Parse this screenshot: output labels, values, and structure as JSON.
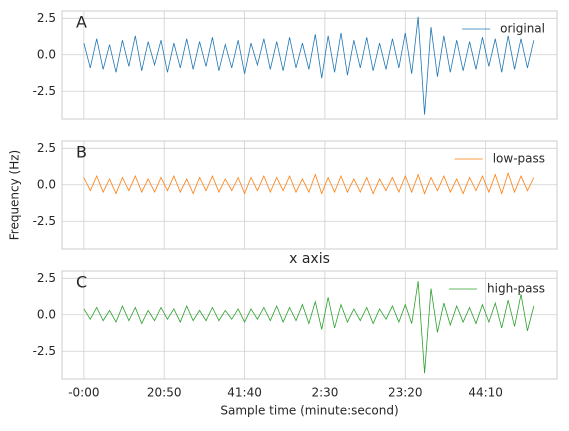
{
  "chart_data": [
    {
      "type": "line",
      "annotation": "A",
      "x": [
        0,
        100,
        200,
        300,
        400,
        500,
        600,
        700,
        800,
        900,
        1000,
        1100,
        1200,
        1300,
        1400,
        1500,
        1600,
        1700,
        1800,
        1900,
        2000,
        2100,
        2200,
        2300,
        2400,
        2500,
        2600,
        2700,
        2800,
        2900,
        3000,
        3100,
        3200,
        3300,
        3400,
        3500,
        3600,
        3700,
        3800,
        3900,
        4000,
        4100,
        4200,
        4300,
        4400,
        4500,
        4600,
        4700,
        4800,
        4900,
        5000,
        5100,
        5200,
        5300,
        5400,
        5500,
        5600,
        5700,
        5800,
        5900,
        6000,
        6100,
        6200,
        6300,
        6400,
        6500,
        6600,
        6700,
        6800,
        6900,
        7000
      ],
      "series": [
        {
          "name": "original",
          "color": "#1f77b4",
          "values": [
            0.8,
            -0.9,
            1.1,
            -1.0,
            0.7,
            -1.2,
            1.0,
            -0.8,
            1.3,
            -1.1,
            0.9,
            -0.7,
            1.0,
            -1.2,
            0.8,
            -0.9,
            1.1,
            -1.0,
            0.9,
            -0.8,
            1.2,
            -1.1,
            0.7,
            -0.9,
            1.0,
            -1.3,
            0.8,
            -0.7,
            1.1,
            -1.0,
            0.9,
            -1.1,
            1.2,
            -0.9,
            0.8,
            -1.0,
            1.4,
            -1.6,
            1.3,
            -1.2,
            1.5,
            -1.4,
            1.0,
            -0.9,
            1.2,
            -1.1,
            0.8,
            -1.0,
            1.1,
            -0.9,
            1.5,
            -1.3,
            2.6,
            -4.1,
            1.9,
            -1.5,
            1.3,
            -1.2,
            1.0,
            -1.1,
            0.9,
            -1.0,
            1.2,
            -0.8,
            1.1,
            -1.2,
            1.3,
            -1.0,
            1.1,
            -0.9,
            1.0
          ]
        }
      ],
      "xlim": [
        -340,
        7360
      ],
      "xticks": [
        0,
        1250,
        2500,
        3750,
        5000,
        6250
      ],
      "ylim": [
        -4.4,
        3.0
      ],
      "yticks": [
        -2.5,
        {
          "value": 0,
          "label": "0.0"
        },
        2.5
      ],
      "grid": true,
      "legend": "upper right"
    },
    {
      "type": "line",
      "annotation": "B",
      "ylabel": "Frequency (Hz)",
      "x": [
        0,
        100,
        200,
        300,
        400,
        500,
        600,
        700,
        800,
        900,
        1000,
        1100,
        1200,
        1300,
        1400,
        1500,
        1600,
        1700,
        1800,
        1900,
        2000,
        2100,
        2200,
        2300,
        2400,
        2500,
        2600,
        2700,
        2800,
        2900,
        3000,
        3100,
        3200,
        3300,
        3400,
        3500,
        3600,
        3700,
        3800,
        3900,
        4000,
        4100,
        4200,
        4300,
        4400,
        4500,
        4600,
        4700,
        4800,
        4900,
        5000,
        5100,
        5200,
        5300,
        5400,
        5500,
        5600,
        5700,
        5800,
        5900,
        6000,
        6100,
        6200,
        6300,
        6400,
        6500,
        6600,
        6700,
        6800,
        6900,
        7000
      ],
      "series": [
        {
          "name": "low-pass",
          "color": "#ff7f0e",
          "values": [
            0.5,
            -0.4,
            0.6,
            -0.5,
            0.4,
            -0.6,
            0.5,
            -0.4,
            0.6,
            -0.5,
            0.4,
            -0.5,
            0.5,
            -0.4,
            0.6,
            -0.5,
            0.4,
            -0.6,
            0.5,
            -0.4,
            0.6,
            -0.5,
            0.4,
            -0.4,
            0.5,
            -0.6,
            0.5,
            -0.4,
            0.6,
            -0.5,
            0.5,
            -0.4,
            0.6,
            -0.5,
            0.4,
            -0.5,
            0.7,
            -0.6,
            0.5,
            -0.5,
            0.6,
            -0.5,
            0.4,
            -0.5,
            0.5,
            -0.6,
            0.4,
            -0.4,
            0.5,
            -0.5,
            0.6,
            -0.5,
            0.7,
            -0.6,
            0.5,
            -0.4,
            0.6,
            -0.5,
            0.4,
            -0.6,
            0.5,
            -0.4,
            0.6,
            -0.5,
            0.7,
            -0.6,
            0.8,
            -0.5,
            0.6,
            -0.4,
            0.5
          ]
        }
      ],
      "xlim": [
        -340,
        7360
      ],
      "xticks": [
        0,
        1250,
        2500,
        3750,
        5000,
        6250
      ],
      "ylim": [
        -4.4,
        3.0
      ],
      "yticks": [
        -2.5,
        {
          "value": 0,
          "label": "0.0"
        },
        2.5
      ],
      "grid": true,
      "legend": "upper right"
    },
    {
      "type": "line",
      "annotation": "C",
      "title": "x axis",
      "xlabel": "Sample time (minute:second)",
      "x": [
        0,
        100,
        200,
        300,
        400,
        500,
        600,
        700,
        800,
        900,
        1000,
        1100,
        1200,
        1300,
        1400,
        1500,
        1600,
        1700,
        1800,
        1900,
        2000,
        2100,
        2200,
        2300,
        2400,
        2500,
        2600,
        2700,
        2800,
        2900,
        3000,
        3100,
        3200,
        3300,
        3400,
        3500,
        3600,
        3700,
        3800,
        3900,
        4000,
        4100,
        4200,
        4300,
        4400,
        4500,
        4600,
        4700,
        4800,
        4900,
        5000,
        5100,
        5200,
        5300,
        5400,
        5500,
        5600,
        5700,
        5800,
        5900,
        6000,
        6100,
        6200,
        6300,
        6400,
        6500,
        6600,
        6700,
        6800,
        6900,
        7000
      ],
      "series": [
        {
          "name": "high-pass",
          "color": "#2ca02c",
          "values": [
            0.4,
            -0.3,
            0.5,
            -0.4,
            0.3,
            -0.5,
            0.6,
            -0.4,
            0.5,
            -0.6,
            0.3,
            -0.4,
            0.5,
            -0.3,
            0.4,
            -0.5,
            0.6,
            -0.4,
            0.3,
            -0.4,
            0.5,
            -0.4,
            0.3,
            -0.3,
            0.4,
            -0.5,
            0.4,
            -0.3,
            0.5,
            -0.4,
            0.6,
            -0.5,
            0.5,
            -0.4,
            0.7,
            -0.6,
            0.9,
            -1.0,
            1.2,
            -0.9,
            0.7,
            -0.5,
            0.4,
            -0.4,
            0.5,
            -0.6,
            0.4,
            -0.3,
            0.6,
            -0.5,
            0.7,
            -0.6,
            2.3,
            -4.0,
            1.8,
            -1.2,
            0.8,
            -0.7,
            0.6,
            -0.5,
            0.5,
            -0.6,
            0.7,
            -0.5,
            0.8,
            -0.9,
            1.0,
            -0.8,
            1.4,
            -1.1,
            0.6
          ]
        }
      ],
      "xlim": [
        -340,
        7360
      ],
      "xticks": [
        {
          "value": 0,
          "label": "-0:00"
        },
        {
          "value": 1250,
          "label": "20:50"
        },
        {
          "value": 2500,
          "label": "41:40"
        },
        {
          "value": 3750,
          "label": "2:30"
        },
        {
          "value": 5000,
          "label": "23:20"
        },
        {
          "value": 6250,
          "label": "44:10"
        }
      ],
      "ylim": [
        -4.4,
        3.0
      ],
      "yticks": [
        -2.5,
        {
          "value": 0,
          "label": "0.0"
        },
        2.5
      ],
      "grid": true,
      "legend": "upper right"
    }
  ]
}
